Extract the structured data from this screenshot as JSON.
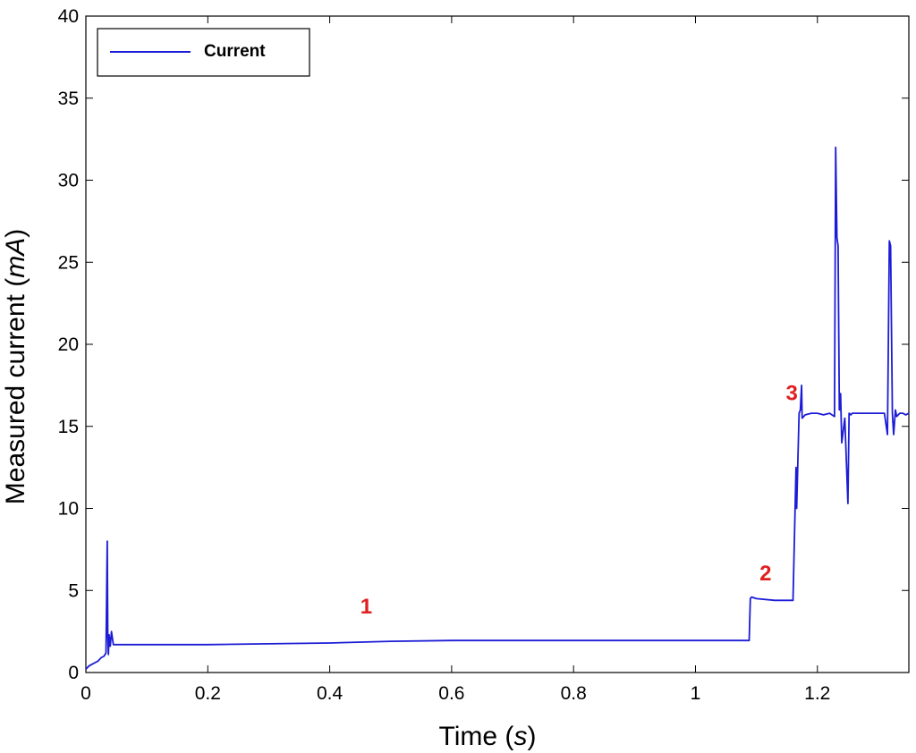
{
  "chart_data": {
    "type": "line",
    "title": "",
    "xlabel": {
      "text": "Time (",
      "unit": "s",
      "close": ")"
    },
    "ylabel": {
      "text": "Measured current (",
      "unit": "mA",
      "close": ")"
    },
    "xlim": [
      0,
      1.35
    ],
    "ylim": [
      0,
      40
    ],
    "xticks": [
      0,
      0.2,
      0.4,
      0.6,
      0.8,
      1,
      1.2
    ],
    "xtick_labels": [
      "0",
      "0.2",
      "0.4",
      "0.6",
      "0.8",
      "1",
      "1.2"
    ],
    "yticks": [
      0,
      5,
      10,
      15,
      20,
      25,
      30,
      35,
      40
    ],
    "ytick_labels": [
      "0",
      "5",
      "10",
      "15",
      "20",
      "25",
      "30",
      "35",
      "40"
    ],
    "grid": false,
    "legend": {
      "position": "top-left",
      "entries": [
        "Current"
      ]
    },
    "colors": {
      "series": "#1c1cd6",
      "annotation": "#e02020",
      "axis": "#000000"
    },
    "series": [
      {
        "name": "Current",
        "x": [
          0,
          0.005,
          0.01,
          0.015,
          0.02,
          0.025,
          0.03,
          0.033,
          0.035,
          0.036,
          0.037,
          0.038,
          0.04,
          0.042,
          0.045,
          0.05,
          0.1,
          0.2,
          0.3,
          0.4,
          0.5,
          0.6,
          0.7,
          0.8,
          0.9,
          1.0,
          1.05,
          1.088,
          1.09,
          1.092,
          1.1,
          1.13,
          1.16,
          1.165,
          1.166,
          1.17,
          1.172,
          1.174,
          1.175,
          1.18,
          1.19,
          1.2,
          1.21,
          1.22,
          1.228,
          1.23,
          1.232,
          1.234,
          1.236,
          1.238,
          1.24,
          1.245,
          1.25,
          1.252,
          1.255,
          1.257,
          1.26,
          1.27,
          1.3,
          1.31,
          1.315,
          1.318,
          1.32,
          1.323,
          1.325,
          1.328,
          1.33,
          1.335,
          1.34,
          1.345,
          1.35
        ],
        "y": [
          0.2,
          0.4,
          0.5,
          0.6,
          0.7,
          0.9,
          1.0,
          1.2,
          8.0,
          2.2,
          1.1,
          2.3,
          1.6,
          2.5,
          1.7,
          1.7,
          1.7,
          1.7,
          1.75,
          1.8,
          1.9,
          1.95,
          1.95,
          1.95,
          1.95,
          1.95,
          1.95,
          1.95,
          4.5,
          4.6,
          4.5,
          4.4,
          4.4,
          12.5,
          10.0,
          15.8,
          16.0,
          17.5,
          15.5,
          15.7,
          15.8,
          15.8,
          15.7,
          15.8,
          15.6,
          32.0,
          26.5,
          26.0,
          16.0,
          17.0,
          14.0,
          15.5,
          10.3,
          15.8,
          15.7,
          15.8,
          15.8,
          15.8,
          15.8,
          15.8,
          14.5,
          26.3,
          26.0,
          15.8,
          14.5,
          16.0,
          15.6,
          15.8,
          15.8,
          15.7,
          15.8
        ]
      }
    ],
    "annotations": [
      {
        "text": "1",
        "x": 0.46,
        "y": 3.6
      },
      {
        "text": "2",
        "x": 1.115,
        "y": 5.6
      },
      {
        "text": "3",
        "x": 1.158,
        "y": 16.6
      }
    ]
  }
}
